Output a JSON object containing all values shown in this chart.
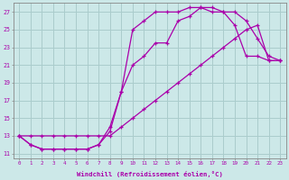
{
  "xlabel": "Windchill (Refroidissement éolien,°C)",
  "bg_color": "#cce8e8",
  "grid_color": "#aacccc",
  "line_color": "#aa00aa",
  "xlim": [
    -0.5,
    23.5
  ],
  "ylim": [
    10.5,
    28
  ],
  "xticks": [
    0,
    1,
    2,
    3,
    4,
    5,
    6,
    7,
    8,
    9,
    10,
    11,
    12,
    13,
    14,
    15,
    16,
    17,
    18,
    19,
    20,
    21,
    22,
    23
  ],
  "yticks": [
    11,
    13,
    15,
    17,
    19,
    21,
    23,
    25,
    27
  ],
  "line1_x": [
    0,
    1,
    2,
    3,
    4,
    5,
    6,
    7,
    8,
    9,
    10,
    11,
    12,
    13,
    14,
    15,
    16,
    17,
    18,
    19,
    20,
    21,
    22,
    23
  ],
  "line1_y": [
    13,
    12,
    11.5,
    11.5,
    11.5,
    11.5,
    11.5,
    12,
    14,
    18,
    25,
    26,
    27,
    27,
    27,
    27.5,
    27.5,
    27,
    27,
    25.5,
    22,
    22,
    21.5,
    21.5
  ],
  "line2_x": [
    0,
    1,
    2,
    3,
    4,
    5,
    6,
    7,
    8,
    9,
    10,
    11,
    12,
    13,
    14,
    15,
    16,
    17,
    18,
    19,
    20,
    21,
    22,
    23
  ],
  "line2_y": [
    13,
    12,
    11.5,
    11.5,
    11.5,
    11.5,
    11.5,
    12,
    13.5,
    18,
    21,
    22,
    23.5,
    23.5,
    26,
    26.5,
    27.5,
    27.5,
    27,
    27,
    26,
    24,
    22,
    21.5
  ],
  "line3_x": [
    0,
    1,
    2,
    3,
    4,
    5,
    6,
    7,
    8,
    9,
    10,
    11,
    12,
    13,
    14,
    15,
    16,
    17,
    18,
    19,
    20,
    21,
    22,
    23
  ],
  "line3_y": [
    13,
    13,
    13,
    13,
    13,
    13,
    13,
    13,
    13,
    14,
    15,
    16,
    17,
    18,
    19,
    20,
    21,
    22,
    23,
    24,
    25,
    25.5,
    21.5,
    21.5
  ]
}
